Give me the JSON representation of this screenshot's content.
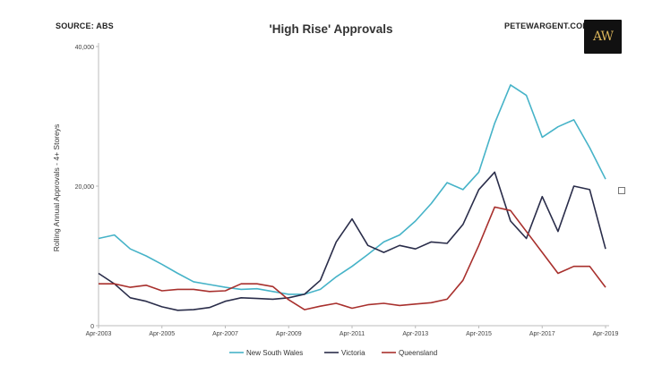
{
  "header": {
    "source": "SOURCE: ABS",
    "title": "'High Rise' Approvals",
    "site": "PETEWARGENT.COM",
    "logo_text": "AW"
  },
  "colors": {
    "nsw": "#46b3c8",
    "vic": "#2a2d4a",
    "qld": "#a8302d",
    "axis": "#bbbbbb",
    "logo_bg": "#111111",
    "logo_text": "#d8b35a"
  },
  "icons": {
    "corner_square": "square-outline-icon"
  },
  "chart_data": {
    "type": "line",
    "title": "'High Rise' Approvals",
    "ylabel": "Rolling Annual Approvals - 4+ Storeys",
    "xlabel": "",
    "x_ticks": [
      "Apr-2003",
      "Apr-2005",
      "Apr-2007",
      "Apr-2009",
      "Apr-2011",
      "Apr-2013",
      "Apr-2015",
      "Apr-2017",
      "Apr-2019"
    ],
    "y_ticks": [
      "0",
      "20,000",
      "40,000"
    ],
    "xlim": [
      "Apr-2003",
      "Apr-2019"
    ],
    "ylim": [
      0,
      40000
    ],
    "grid": false,
    "legend_position": "bottom",
    "x": [
      "2003-04",
      "2003-10",
      "2004-04",
      "2004-10",
      "2005-04",
      "2005-10",
      "2006-04",
      "2006-10",
      "2007-04",
      "2007-10",
      "2008-04",
      "2008-10",
      "2009-04",
      "2009-10",
      "2010-04",
      "2010-10",
      "2011-04",
      "2011-10",
      "2012-04",
      "2012-10",
      "2013-04",
      "2013-10",
      "2014-04",
      "2014-10",
      "2015-04",
      "2015-10",
      "2016-04",
      "2016-10",
      "2017-04",
      "2017-10",
      "2018-04",
      "2018-10",
      "2019-04"
    ],
    "series": [
      {
        "name": "New South Wales",
        "values": [
          12500,
          13000,
          11000,
          10000,
          8800,
          7500,
          6300,
          5900,
          5500,
          5200,
          5300,
          4900,
          4500,
          4500,
          5200,
          7000,
          8500,
          10200,
          12000,
          13000,
          15000,
          17500,
          20500,
          19500,
          22000,
          29000,
          34500,
          33000,
          27000,
          28500,
          29500,
          25500,
          21000
        ]
      },
      {
        "name": "Victoria",
        "values": [
          7500,
          6000,
          4000,
          3500,
          2700,
          2200,
          2300,
          2600,
          3500,
          4000,
          3900,
          3800,
          4000,
          4500,
          6500,
          12000,
          15300,
          11500,
          10500,
          11500,
          11000,
          12000,
          11800,
          14500,
          19500,
          22000,
          15000,
          12500,
          18500,
          13500,
          20000,
          19500,
          11000
        ]
      },
      {
        "name": "Queensland",
        "values": [
          6000,
          6000,
          5500,
          5800,
          5000,
          5200,
          5200,
          4900,
          5000,
          6000,
          6000,
          5600,
          3700,
          2300,
          2800,
          3200,
          2500,
          3000,
          3200,
          2900,
          3100,
          3300,
          3800,
          6500,
          11500,
          17000,
          16500,
          13500,
          10500,
          7500,
          8500,
          8500,
          5500
        ]
      }
    ]
  }
}
